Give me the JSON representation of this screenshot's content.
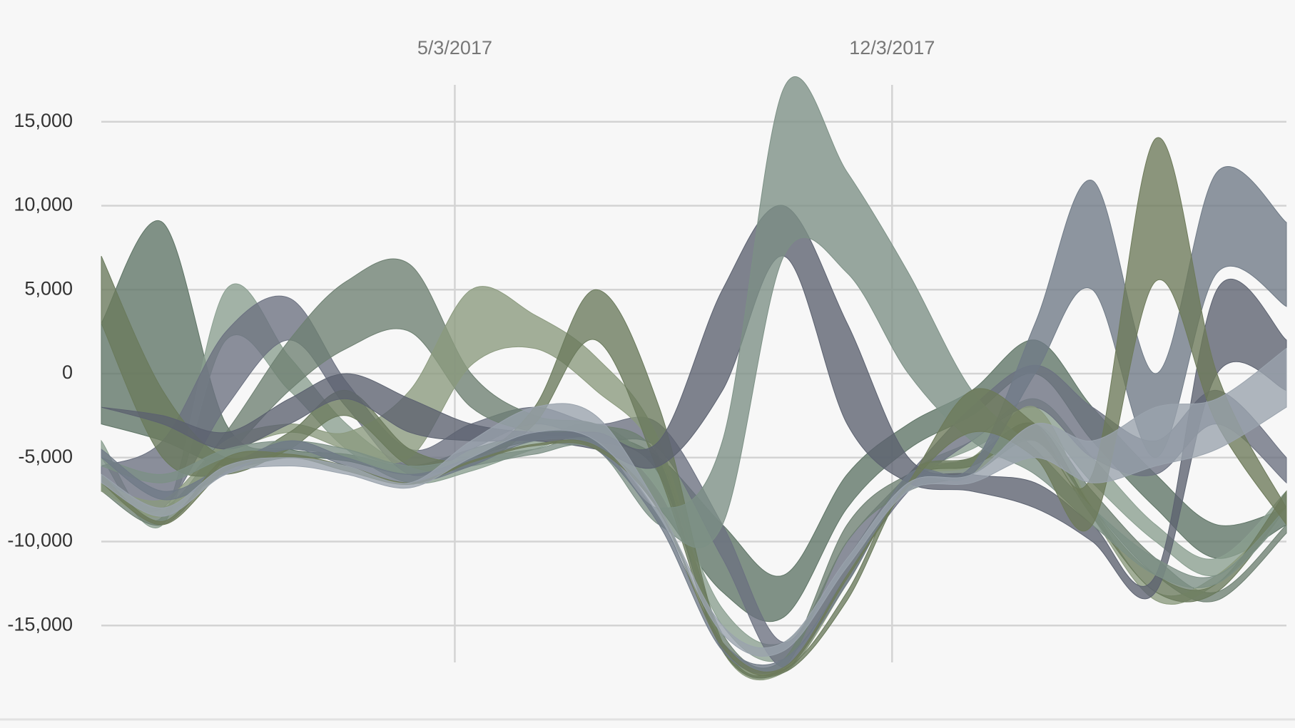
{
  "chart_data": {
    "type": "range-area",
    "x": [
      "11/11/2016",
      "12/11/2016",
      "1/11/2017",
      "2/11/2017",
      "3/11/2017",
      "4/11/2017",
      "5/11/2017",
      "6/11/2017",
      "7/11/2017",
      "8/11/2017",
      "9/11/2017",
      "10/11/2017",
      "11/11/2017",
      "12/11/2017",
      "1/11/2018",
      "2/11/2018",
      "3/11/2018",
      "4/11/2018",
      "5/11/2018",
      "6/14/2018"
    ],
    "xlim": [
      "11/11/2016",
      "6/14/2018"
    ],
    "xticks": [
      "5/3/2017",
      "12/3/2017"
    ],
    "ylim": [
      -20000,
      20000
    ],
    "yticks": [
      {
        "value": -15000,
        "label": "-15,000"
      },
      {
        "value": -10000,
        "label": "-10,000"
      },
      {
        "value": -5000,
        "label": "-5,000"
      },
      0,
      {
        "value": 5000,
        "label": "5,000"
      },
      {
        "value": 10000,
        "label": "10,000"
      },
      {
        "value": 15000,
        "label": "15,000"
      }
    ],
    "grid": true,
    "series": [
      {
        "color": "#5f7566",
        "high": [
          3000,
          9000,
          -3000,
          -4500,
          -4800,
          -5500,
          -4500,
          -3500,
          -3500,
          -5000,
          -9000,
          -12000,
          -6000,
          -3000,
          -1000,
          2000,
          -2000,
          -6000,
          -9000,
          -8000
        ],
        "low": [
          -3000,
          -4000,
          -5500,
          -5000,
          -5200,
          -6000,
          -5000,
          -4000,
          -4200,
          -8000,
          -13000,
          -14500,
          -8000,
          -4500,
          -2500,
          0,
          -4000,
          -8000,
          -11000,
          -9000
        ]
      },
      {
        "color": "#8a9f90",
        "high": [
          -4000,
          -8500,
          5000,
          1000,
          -3000,
          -5500,
          -5000,
          -4000,
          -3000,
          -6000,
          -14000,
          -16000,
          -11000,
          -6000,
          -4000,
          -1500,
          -5000,
          -9000,
          -11000,
          -7000
        ],
        "low": [
          -5000,
          -9000,
          2000,
          -1000,
          -4500,
          -6500,
          -5800,
          -4500,
          -3800,
          -7000,
          -15000,
          -17000,
          -12000,
          -6500,
          -4500,
          -3000,
          -6500,
          -10000,
          -12000,
          -8000
        ]
      },
      {
        "color": "#6b7180",
        "high": [
          -5500,
          -4000,
          2500,
          4500,
          -500,
          -4500,
          -3000,
          -2000,
          -3000,
          -3000,
          -9000,
          -16000,
          -10000,
          -6000,
          -2000,
          500,
          -2000,
          -4000,
          -1000,
          -5000
        ],
        "low": [
          -7000,
          -8000,
          -2000,
          2000,
          -2000,
          -6000,
          -4500,
          -3000,
          -4000,
          -4500,
          -11000,
          -17500,
          -12000,
          -7000,
          -4000,
          -2000,
          -5000,
          -6000,
          -3000,
          -6500
        ]
      },
      {
        "color": "#6e8072",
        "high": [
          -6000,
          -8000,
          -3500,
          2000,
          5500,
          6500,
          0,
          -2500,
          -3000,
          -5000,
          -15500,
          -17000,
          -9000,
          -6000,
          -5000,
          -3000,
          -7000,
          -11000,
          -13000,
          -9000
        ],
        "low": [
          -7000,
          -9000,
          -5000,
          -1000,
          1500,
          2500,
          -2000,
          -3500,
          -4000,
          -6000,
          -16500,
          -17500,
          -10000,
          -7000,
          -6000,
          -4000,
          -8000,
          -12000,
          -13500,
          -9500
        ]
      },
      {
        "color": "#8b9a7e",
        "high": [
          -6500,
          -7500,
          -4000,
          -3000,
          -3500,
          -1000,
          5000,
          3500,
          1000,
          -4000,
          -16000,
          -17500,
          -12000,
          -6000,
          -5000,
          -2000,
          -8000,
          -13000,
          -12000,
          -8000
        ],
        "low": [
          -7000,
          -8500,
          -5000,
          -3500,
          -4500,
          -5000,
          500,
          1500,
          -1000,
          -5000,
          -16500,
          -17800,
          -12500,
          -6500,
          -5500,
          -3000,
          -8500,
          -13500,
          -12500,
          -8500
        ]
      },
      {
        "color": "#6a7a5c",
        "high": [
          7000,
          -1000,
          -5000,
          -3500,
          -1000,
          -4500,
          -5000,
          -2000,
          5000,
          -2000,
          -16000,
          -17600,
          -13000,
          -6000,
          -5000,
          -3000,
          -8000,
          -12000,
          -12500,
          -7000
        ],
        "low": [
          3000,
          -5000,
          -6000,
          -4500,
          -2500,
          -5500,
          -5500,
          -3000,
          2000,
          -6000,
          -16500,
          -17800,
          -13500,
          -6500,
          -5500,
          -4000,
          -8500,
          -13000,
          -13000,
          -8000
        ]
      },
      {
        "color": "#5c6270",
        "high": [
          -2000,
          -2500,
          -3500,
          -1500,
          0,
          -1500,
          -3000,
          -3500,
          -3500,
          -4000,
          5000,
          10000,
          3000,
          -5000,
          -6000,
          -6500,
          -9000,
          -12000,
          5000,
          2000
        ],
        "low": [
          -2000,
          -3000,
          -4500,
          -3000,
          -1500,
          -3500,
          -4000,
          -4000,
          -4500,
          -5500,
          -1000,
          7000,
          -3000,
          -6500,
          -7000,
          -8000,
          -10000,
          -13000,
          0,
          -1000
        ]
      },
      {
        "color": "#7c9085",
        "high": [
          -5000,
          -6000,
          -4500,
          -4000,
          -4500,
          -5500,
          -5000,
          -4500,
          -4000,
          -8000,
          -4000,
          17000,
          12000,
          6000,
          -1000,
          -4500,
          -8000,
          -11000,
          -12000,
          -8000
        ],
        "low": [
          -5500,
          -6500,
          -5000,
          -4500,
          -5000,
          -6000,
          -5500,
          -4800,
          -4500,
          -9000,
          -9000,
          7000,
          6000,
          0,
          -4000,
          -6000,
          -9000,
          -12000,
          -12500,
          -8500
        ]
      },
      {
        "color": "#6f7a86",
        "high": [
          -4500,
          -7000,
          -5500,
          -4000,
          -5000,
          -6000,
          -5000,
          -3500,
          -4000,
          -8500,
          -16000,
          -17000,
          -12000,
          -6000,
          -5500,
          3000,
          11500,
          0,
          12000,
          9000
        ],
        "low": [
          -5000,
          -7500,
          -6000,
          -4500,
          -5500,
          -6500,
          -5500,
          -4000,
          -4500,
          -9000,
          -16500,
          -17500,
          -12500,
          -6500,
          -6000,
          0,
          5000,
          -5000,
          6000,
          4000
        ]
      },
      {
        "color": "#6d7a5a",
        "high": [
          -6000,
          -8800,
          -5000,
          -4800,
          -5500,
          -6500,
          -5200,
          -4200,
          -4300,
          -8000,
          -16000,
          -17500,
          -12000,
          -6500,
          -1000,
          -3000,
          -6000,
          14000,
          0,
          -8000
        ],
        "low": [
          -6500,
          -9000,
          -5800,
          -5000,
          -5800,
          -6600,
          -5300,
          -4300,
          -4500,
          -8200,
          -16300,
          -17700,
          -12200,
          -6700,
          -3500,
          -5000,
          -9000,
          5500,
          -3000,
          -9000
        ]
      },
      {
        "color": "#9aa3ad",
        "high": [
          -6000,
          -8000,
          -5500,
          -5000,
          -5500,
          -6500,
          -4000,
          -2000,
          -2500,
          -8000,
          -15000,
          -16000,
          -11000,
          -6500,
          -6000,
          -3000,
          -4000,
          -2000,
          -1500,
          1500
        ],
        "low": [
          -6500,
          -8500,
          -6000,
          -5500,
          -6000,
          -6800,
          -5000,
          -3500,
          -4000,
          -8500,
          -15500,
          -16500,
          -11500,
          -7000,
          -6500,
          -5000,
          -6500,
          -5500,
          -4500,
          -2000
        ]
      }
    ]
  }
}
